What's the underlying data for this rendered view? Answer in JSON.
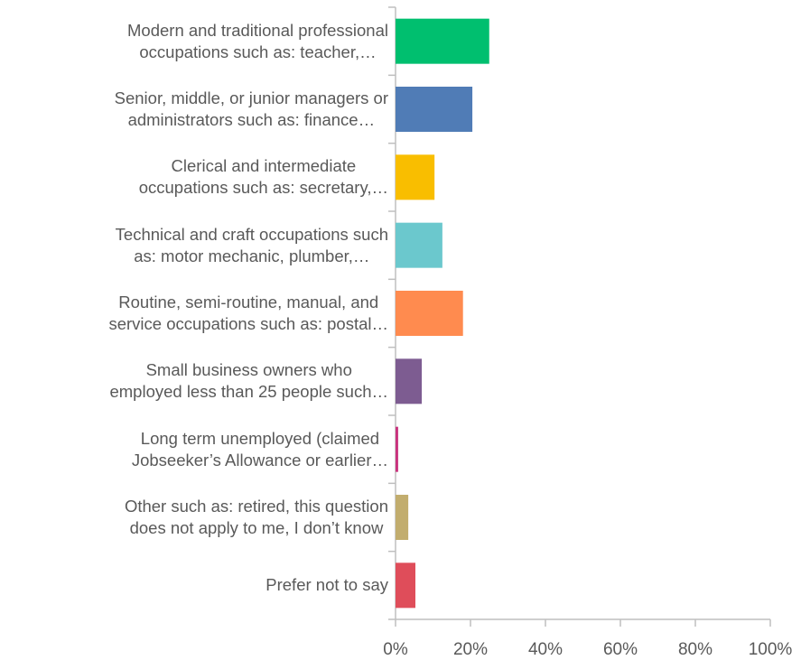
{
  "chart_data": {
    "type": "hbar",
    "categories": [
      "Modern and traditional professional\noccupations such as: teacher,…",
      "Senior, middle, or junior managers or\nadministrators such as: finance…",
      "Clerical and intermediate\noccupations such as: secretary,…",
      "Technical and craft occupations such\nas: motor mechanic, plumber,…",
      "Routine, semi-routine, manual, and\nservice occupations such as: postal…",
      "Small business owners who\nemployed less than 25 people such…",
      "Long term unemployed (claimed\nJobseeker’s Allowance or earlier…",
      "Other such as: retired, this question\ndoes not apply to me, I don’t know",
      "Prefer not to say"
    ],
    "values": [
      25,
      20.5,
      10.4,
      12.5,
      18,
      7,
      0.7,
      3.4,
      5.3
    ],
    "colors": [
      "#00bf6f",
      "#507cb6",
      "#f9be00",
      "#6bc8cd",
      "#ff8b4f",
      "#7d5c91",
      "#c9327d",
      "#c2ad6e",
      "#df4d5a"
    ],
    "xlim": [
      0,
      100
    ],
    "xticks": [
      {
        "value": 0,
        "label": "0%"
      },
      {
        "value": 20,
        "label": "20%"
      },
      {
        "value": 40,
        "label": "40%"
      },
      {
        "value": 60,
        "label": "60%"
      },
      {
        "value": 80,
        "label": "80%"
      },
      {
        "value": 100,
        "label": "100%"
      }
    ]
  }
}
